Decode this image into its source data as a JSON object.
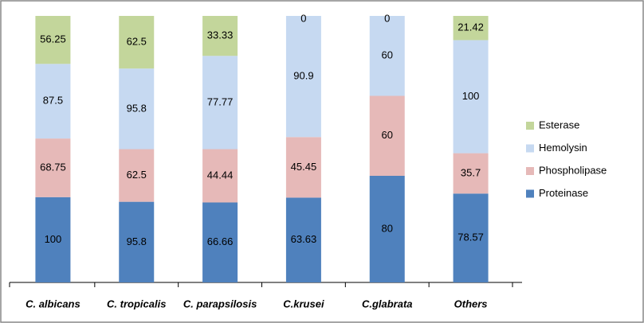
{
  "chart_data": {
    "type": "stacked_bar",
    "stacking": "percent",
    "categories": [
      "C. albicans",
      "C. tropicalis",
      "C. parapsilosis",
      "C.krusei",
      "C.glabrata",
      "Others"
    ],
    "series": [
      {
        "name": "Proteinase",
        "color": "#4f81bd",
        "values": [
          100,
          95.8,
          66.66,
          63.63,
          80,
          78.57
        ]
      },
      {
        "name": "Phospholipase",
        "color": "#e6b9b8",
        "values": [
          68.75,
          62.5,
          44.44,
          45.45,
          60,
          35.7
        ]
      },
      {
        "name": "Hemolysin",
        "color": "#c6d9f1",
        "values": [
          87.5,
          95.8,
          77.77,
          90.9,
          60,
          100
        ]
      },
      {
        "name": "Esterase",
        "color": "#c3d69b",
        "values": [
          56.25,
          62.5,
          33.33,
          0,
          0,
          21.42
        ]
      }
    ],
    "legend": "right"
  }
}
